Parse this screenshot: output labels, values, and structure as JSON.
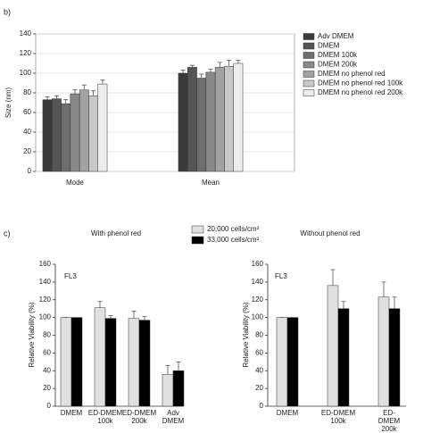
{
  "chart_data": [
    {
      "type": "bar",
      "panel": "b)",
      "ylabel": "Size (nm)",
      "ylim": [
        0,
        140
      ],
      "yticks": [
        0,
        20,
        40,
        60,
        80,
        100,
        120,
        140
      ],
      "grid": true,
      "legend": "right",
      "categories": [
        "Mode",
        "Mean"
      ],
      "series": [
        {
          "name": "Adv DMEM",
          "color": "#3a3a3a",
          "values": [
            73,
            100
          ],
          "errors": [
            3,
            3
          ]
        },
        {
          "name": "DMEM",
          "color": "#555555",
          "values": [
            74,
            106
          ],
          "errors": [
            3,
            2
          ]
        },
        {
          "name": "DMEM 100k",
          "color": "#6e6e6e",
          "values": [
            69,
            95
          ],
          "errors": [
            4,
            4
          ]
        },
        {
          "name": "DMEM 200k",
          "color": "#888888",
          "values": [
            79,
            101
          ],
          "errors": [
            4,
            3
          ]
        },
        {
          "name": "DMEM no phenol red",
          "color": "#a2a2a2",
          "values": [
            83,
            106
          ],
          "errors": [
            5,
            5
          ]
        },
        {
          "name": "DMEM no phenol red 100k",
          "color": "#c8c8c8",
          "values": [
            77,
            107
          ],
          "errors": [
            5,
            6
          ]
        },
        {
          "name": "DMEM no phenol red 200k",
          "color": "#ececec",
          "values": [
            89,
            110
          ],
          "errors": [
            4,
            3
          ]
        }
      ]
    },
    {
      "type": "bar",
      "panel": "c)",
      "title": "With phenol red",
      "annotation": "FL3",
      "ylabel": "Relative Viability (%)",
      "ylim": [
        0,
        160
      ],
      "yticks": [
        0,
        20,
        40,
        60,
        80,
        100,
        120,
        140,
        160
      ],
      "grid": false,
      "legend": "top",
      "categories": [
        "DMEM",
        "ED-DMEM\n100k",
        "ED-DMEM\n200k",
        "Adv\nDMEM"
      ],
      "series": [
        {
          "name": "20,000 cells/cm²",
          "color": "#e0e0e0",
          "values": [
            100,
            111,
            99,
            36
          ],
          "errors": [
            0,
            7,
            8,
            10
          ]
        },
        {
          "name": "33,000 cells/cm²",
          "color": "#000000",
          "values": [
            100,
            99,
            97,
            40
          ],
          "errors": [
            0,
            3,
            4,
            10
          ]
        }
      ]
    },
    {
      "type": "bar",
      "title": "Without phenol red",
      "annotation": "FL3",
      "ylabel": "Relative Viability (%)",
      "ylim": [
        0,
        160
      ],
      "yticks": [
        0,
        20,
        40,
        60,
        80,
        100,
        120,
        140,
        160
      ],
      "grid": false,
      "categories": [
        "DMEM",
        "ED-DMEM\n100k",
        "ED-DMEM\n200k"
      ],
      "series": [
        {
          "color": "#e0e0e0",
          "values": [
            100,
            136,
            123
          ],
          "errors": [
            0,
            18,
            17
          ]
        },
        {
          "color": "#000000",
          "values": [
            100,
            110,
            110
          ],
          "errors": [
            0,
            8,
            13
          ]
        }
      ]
    }
  ]
}
